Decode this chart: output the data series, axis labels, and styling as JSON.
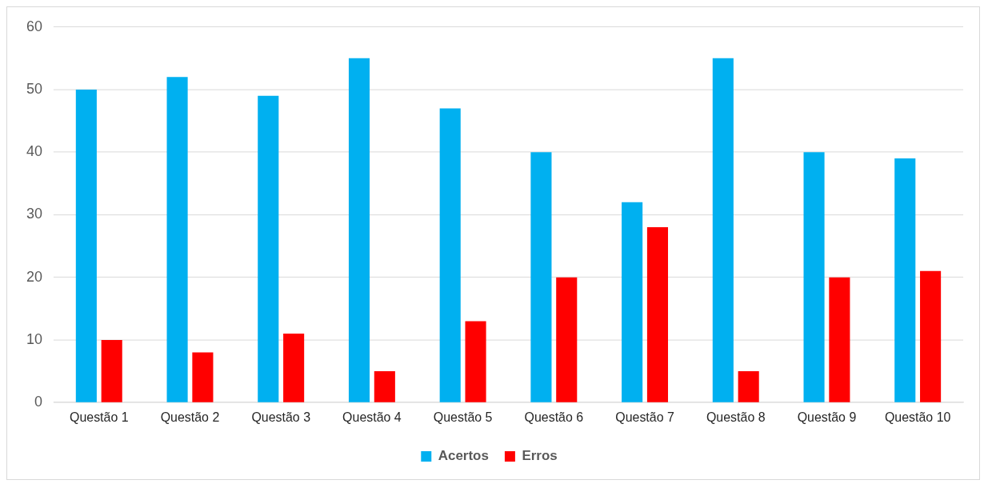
{
  "chart_data": {
    "type": "bar",
    "categories": [
      "Questão 1",
      "Questão 2",
      "Questão 3",
      "Questão 4",
      "Questão 5",
      "Questão 6",
      "Questão 7",
      "Questão 8",
      "Questão 9",
      "Questão 10"
    ],
    "series": [
      {
        "name": "Acertos",
        "color": "#00b0f0",
        "values": [
          50,
          52,
          49,
          55,
          47,
          40,
          32,
          55,
          40,
          39
        ]
      },
      {
        "name": "Erros",
        "color": "#ff0000",
        "values": [
          10,
          8,
          11,
          5,
          13,
          20,
          28,
          5,
          20,
          21
        ]
      }
    ],
    "ylim": [
      0,
      60
    ],
    "yticks": [
      0,
      10,
      20,
      30,
      40,
      50,
      60
    ],
    "grid": "y",
    "legend": "bottom"
  }
}
